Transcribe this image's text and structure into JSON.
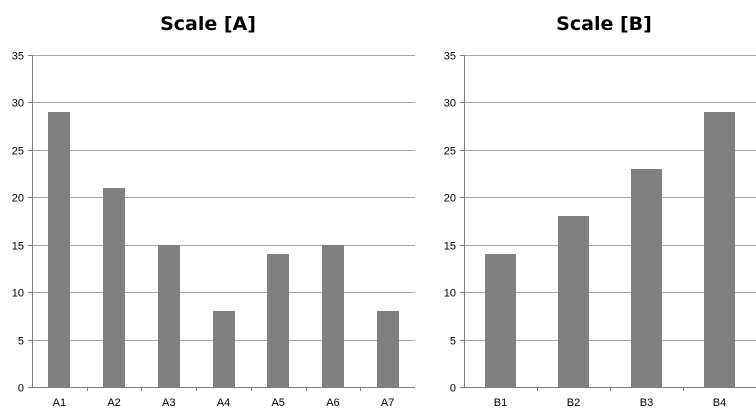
{
  "chart_data": [
    {
      "type": "bar",
      "title": "Scale [A]",
      "xlabel": "",
      "ylabel": "",
      "categories": [
        "A1",
        "A2",
        "A3",
        "A4",
        "A5",
        "A6",
        "A7"
      ],
      "values": [
        29,
        21,
        15,
        8,
        14,
        15,
        8
      ],
      "ylim": [
        0,
        35
      ],
      "yticks": [
        "0",
        "5",
        "10",
        "15",
        "20",
        "25",
        "30",
        "35"
      ],
      "grid": true,
      "legend": "none",
      "bar_color": "#808080",
      "grid_color": "#a6a6a6"
    },
    {
      "type": "bar",
      "title": "Scale [B]",
      "xlabel": "",
      "ylabel": "",
      "categories": [
        "B1",
        "B2",
        "B3",
        "B4"
      ],
      "values": [
        14,
        18,
        23,
        29
      ],
      "ylim": [
        0,
        35
      ],
      "yticks": [
        "0",
        "5",
        "10",
        "15",
        "20",
        "25",
        "30",
        "35"
      ],
      "grid": true,
      "legend": "none",
      "bar_color": "#808080",
      "grid_color": "#a6a6a6"
    }
  ]
}
